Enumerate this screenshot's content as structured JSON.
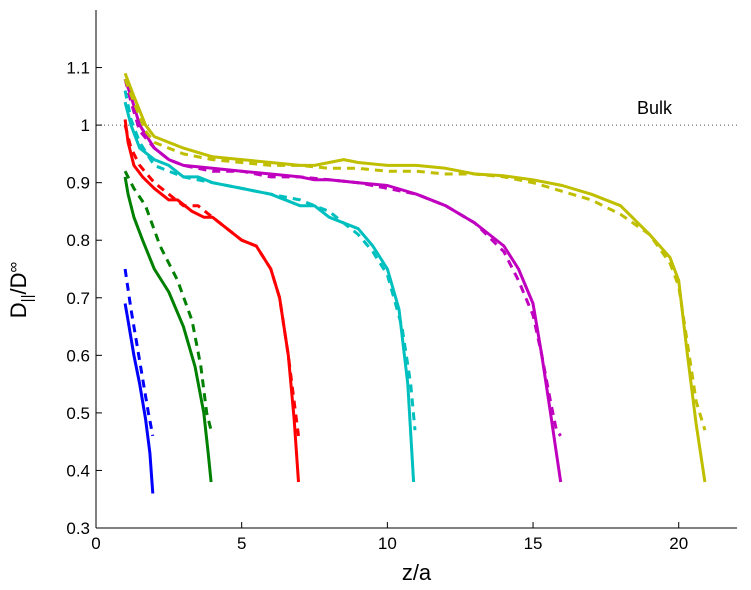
{
  "chart_data": {
    "type": "line",
    "xlabel": "z/a",
    "ylabel": "D||/D∞",
    "xlim": [
      0,
      22
    ],
    "ylim": [
      0.3,
      1.2
    ],
    "xticks": [
      0,
      5,
      10,
      15,
      20
    ],
    "yticks": [
      0.3,
      0.4,
      0.5,
      0.6,
      0.7,
      0.8,
      0.9,
      1,
      1.1
    ],
    "grid": false,
    "legend": "none",
    "reference_line": {
      "y": 1.0,
      "label": "Bulk",
      "style": "dotted"
    },
    "series": [
      {
        "color": "#0000ff",
        "style": "solid",
        "x": [
          1.0,
          1.1,
          1.3,
          1.5,
          1.7,
          1.85,
          1.95
        ],
        "y": [
          0.69,
          0.66,
          0.6,
          0.55,
          0.49,
          0.43,
          0.36
        ]
      },
      {
        "color": "#0000ff",
        "style": "dashed",
        "x": [
          1.0,
          1.2,
          1.4,
          1.6,
          1.8,
          1.95
        ],
        "y": [
          0.75,
          0.68,
          0.62,
          0.56,
          0.5,
          0.46
        ]
      },
      {
        "color": "#008000",
        "style": "solid",
        "x": [
          1.0,
          1.1,
          1.3,
          1.6,
          2.0,
          2.5,
          3.0,
          3.4,
          3.7,
          3.85,
          3.95
        ],
        "y": [
          0.91,
          0.88,
          0.84,
          0.8,
          0.75,
          0.71,
          0.65,
          0.58,
          0.5,
          0.43,
          0.38
        ]
      },
      {
        "color": "#008000",
        "style": "dashed",
        "x": [
          1.0,
          1.3,
          1.7,
          2.2,
          2.8,
          3.3,
          3.6,
          3.8,
          3.95
        ],
        "y": [
          0.92,
          0.89,
          0.86,
          0.79,
          0.73,
          0.66,
          0.58,
          0.5,
          0.47
        ]
      },
      {
        "color": "#ff0000",
        "style": "solid",
        "x": [
          1.0,
          1.1,
          1.3,
          1.6,
          2.0,
          2.5,
          2.8,
          3.3,
          3.7,
          4.0,
          4.5,
          5.0,
          5.5,
          6.0,
          6.3,
          6.6,
          6.8,
          6.95
        ],
        "y": [
          1.01,
          0.97,
          0.93,
          0.91,
          0.89,
          0.87,
          0.87,
          0.85,
          0.84,
          0.84,
          0.82,
          0.8,
          0.79,
          0.75,
          0.7,
          0.6,
          0.49,
          0.38
        ]
      },
      {
        "color": "#ff0000",
        "style": "dashed",
        "x": [
          1.0,
          1.2,
          1.5,
          2.0,
          2.5,
          3.0,
          3.5,
          4.0,
          4.5,
          5.0,
          5.5,
          6.0,
          6.3,
          6.6,
          6.8,
          6.95
        ],
        "y": [
          1.0,
          0.96,
          0.93,
          0.9,
          0.88,
          0.86,
          0.86,
          0.84,
          0.82,
          0.8,
          0.79,
          0.75,
          0.7,
          0.6,
          0.52,
          0.46
        ]
      },
      {
        "color": "#00bfbf",
        "style": "solid",
        "x": [
          1.0,
          1.2,
          1.5,
          2.0,
          2.5,
          3.0,
          3.5,
          4.0,
          5.0,
          6.0,
          7.0,
          7.5,
          8.0,
          9.0,
          9.5,
          10.0,
          10.4,
          10.7,
          10.9
        ],
        "y": [
          1.04,
          1.0,
          0.96,
          0.94,
          0.93,
          0.91,
          0.91,
          0.9,
          0.89,
          0.88,
          0.86,
          0.86,
          0.84,
          0.82,
          0.79,
          0.75,
          0.68,
          0.55,
          0.38
        ]
      },
      {
        "color": "#00bfbf",
        "style": "dashed",
        "x": [
          1.0,
          1.2,
          1.5,
          2.0,
          2.5,
          3.0,
          4.0,
          5.0,
          6.0,
          7.0,
          8.0,
          9.0,
          9.5,
          10.0,
          10.5,
          10.8,
          10.95
        ],
        "y": [
          1.06,
          1.01,
          0.97,
          0.93,
          0.92,
          0.91,
          0.9,
          0.89,
          0.88,
          0.87,
          0.85,
          0.81,
          0.78,
          0.74,
          0.65,
          0.55,
          0.47
        ]
      },
      {
        "color": "#bf00bf",
        "style": "solid",
        "x": [
          1.0,
          1.2,
          1.5,
          2.0,
          2.5,
          3.0,
          4.0,
          5.0,
          6.0,
          7.0,
          7.5,
          8.0,
          9.0,
          10.0,
          11.0,
          12.0,
          13.0,
          14.0,
          14.5,
          15.0,
          15.3,
          15.6,
          15.8,
          15.95
        ],
        "y": [
          1.08,
          1.05,
          1.0,
          0.96,
          0.94,
          0.93,
          0.925,
          0.92,
          0.915,
          0.91,
          0.905,
          0.905,
          0.9,
          0.895,
          0.88,
          0.86,
          0.83,
          0.79,
          0.75,
          0.69,
          0.6,
          0.5,
          0.43,
          0.38
        ]
      },
      {
        "color": "#bf00bf",
        "style": "dashed",
        "x": [
          1.0,
          1.2,
          1.5,
          2.0,
          2.5,
          3.0,
          4.0,
          5.0,
          6.0,
          7.0,
          8.0,
          9.0,
          10.0,
          11.0,
          12.0,
          13.0,
          14.0,
          14.5,
          15.0,
          15.3,
          15.6,
          15.8,
          15.95
        ],
        "y": [
          1.08,
          1.04,
          0.99,
          0.96,
          0.94,
          0.93,
          0.92,
          0.92,
          0.91,
          0.91,
          0.905,
          0.9,
          0.89,
          0.88,
          0.86,
          0.83,
          0.78,
          0.73,
          0.67,
          0.6,
          0.52,
          0.47,
          0.46
        ]
      },
      {
        "color": "#bfbf00",
        "style": "solid",
        "x": [
          1.0,
          1.3,
          1.7,
          2.0,
          3.0,
          4.0,
          5.0,
          6.0,
          7.0,
          7.5,
          8.0,
          8.5,
          9.0,
          10.0,
          11.0,
          12.0,
          13.0,
          14.0,
          15.0,
          16.0,
          17.0,
          18.0,
          19.0,
          19.7,
          20.0,
          20.3,
          20.6,
          20.9
        ],
        "y": [
          1.09,
          1.05,
          1.0,
          0.98,
          0.96,
          0.945,
          0.94,
          0.935,
          0.93,
          0.93,
          0.935,
          0.94,
          0.935,
          0.93,
          0.93,
          0.925,
          0.915,
          0.912,
          0.905,
          0.895,
          0.88,
          0.86,
          0.81,
          0.77,
          0.73,
          0.6,
          0.48,
          0.38
        ]
      },
      {
        "color": "#bfbf00",
        "style": "dashed",
        "x": [
          1.0,
          1.3,
          1.7,
          2.0,
          3.0,
          4.0,
          5.0,
          6.0,
          7.0,
          8.0,
          9.0,
          10.0,
          11.0,
          12.0,
          13.0,
          14.0,
          15.0,
          16.0,
          17.0,
          18.0,
          19.0,
          19.7,
          20.0,
          20.3,
          20.6,
          20.9
        ],
        "y": [
          1.08,
          1.04,
          0.99,
          0.97,
          0.95,
          0.94,
          0.935,
          0.93,
          0.93,
          0.925,
          0.925,
          0.92,
          0.92,
          0.915,
          0.915,
          0.91,
          0.9,
          0.885,
          0.87,
          0.845,
          0.81,
          0.76,
          0.72,
          0.62,
          0.52,
          0.47
        ]
      }
    ]
  }
}
